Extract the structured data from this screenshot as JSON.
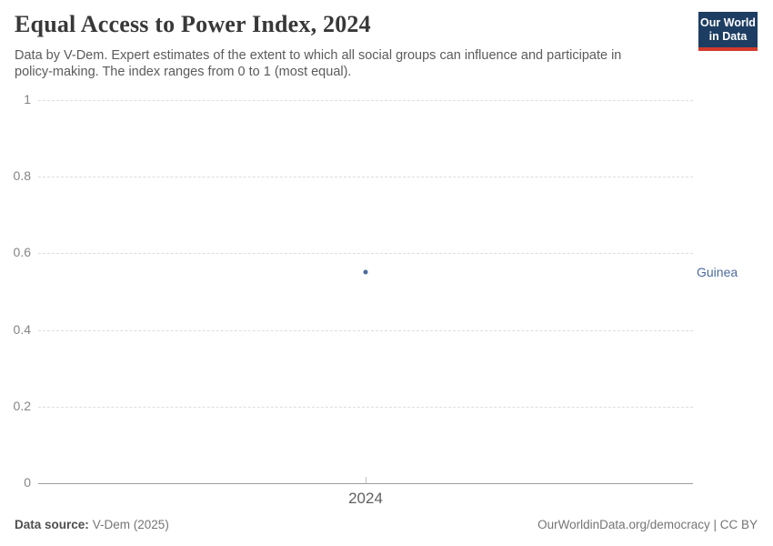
{
  "header": {
    "title": "Equal Access to Power Index, 2024",
    "subtitle": "Data by V-Dem. Expert estimates of the extent to which all social groups can influence and participate in policy-making. The index ranges from 0 to 1 (most equal).",
    "logo": {
      "line1": "Our World",
      "line2": "in Data",
      "bg_color": "#1d3d63",
      "accent_color": "#d23a2c"
    }
  },
  "chart_data": {
    "type": "scatter",
    "title": "Equal Access to Power Index, 2024",
    "x": [
      "2024"
    ],
    "categories": [
      "2024"
    ],
    "series": [
      {
        "name": "Guinea",
        "values": [
          0.55
        ],
        "color": "#4c6a9c"
      }
    ],
    "ylim": [
      0,
      1
    ],
    "yticks": [
      0,
      0.2,
      0.4,
      0.6,
      0.8,
      1
    ],
    "xlabel": "",
    "ylabel": "",
    "grid": "horizontal-dashed",
    "legend_position": "right-of-plot-entity-label"
  },
  "footer": {
    "source_label": "Data source:",
    "source_value": "V-Dem (2025)",
    "rights": "OurWorldinData.org/democracy | CC BY"
  }
}
